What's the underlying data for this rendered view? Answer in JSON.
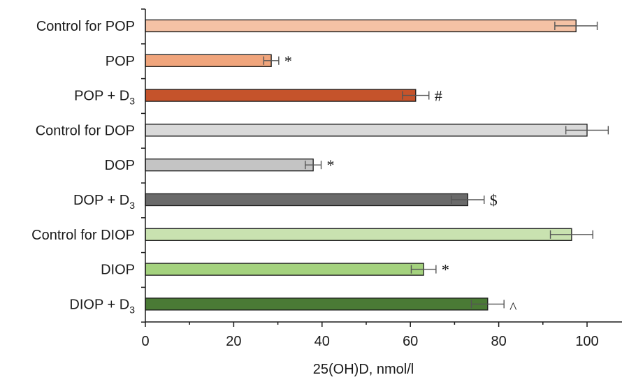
{
  "chart_data": {
    "type": "bar",
    "orientation": "horizontal",
    "xlabel": "25(OH)D, nmol/l",
    "xlim": [
      0,
      108
    ],
    "xticks": [
      0,
      20,
      40,
      60,
      80,
      100
    ],
    "categories": [
      {
        "base": "Control for POP",
        "sub": ""
      },
      {
        "base": "POP",
        "sub": ""
      },
      {
        "base": "POP + D",
        "sub": "3"
      },
      {
        "base": "Control for DOP",
        "sub": ""
      },
      {
        "base": "DOP",
        "sub": ""
      },
      {
        "base": "DOP + D",
        "sub": "3"
      },
      {
        "base": "Control for DIOP",
        "sub": ""
      },
      {
        "base": "DIOP",
        "sub": ""
      },
      {
        "base": "DIOP + D",
        "sub": "3"
      }
    ],
    "values": [
      97.5,
      28.5,
      61.2,
      100.0,
      38.0,
      73.0,
      96.5,
      63.0,
      77.5
    ],
    "errors": [
      4.8,
      1.7,
      3.0,
      4.8,
      1.8,
      3.7,
      4.8,
      2.8,
      3.7
    ],
    "annotations": [
      "",
      "*",
      "#",
      "",
      "*",
      "$",
      "",
      "*",
      "^"
    ],
    "colors": [
      "#F5C2A5",
      "#F0A57C",
      "#C5532B",
      "#D9D9D9",
      "#C4C4C4",
      "#6A6A6A",
      "#C9E2B0",
      "#A4D27E",
      "#4A7A35"
    ],
    "grid": false
  }
}
